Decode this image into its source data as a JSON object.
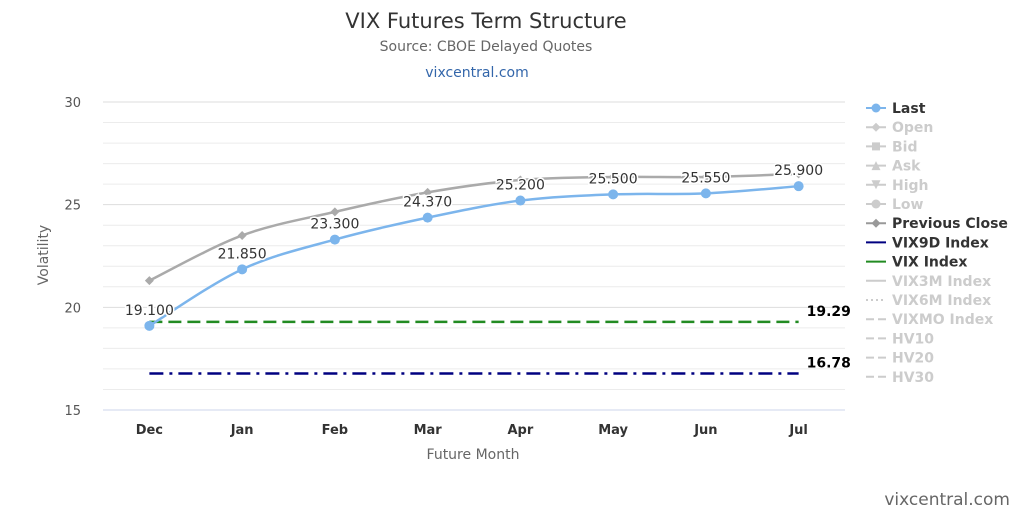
{
  "chart_data": {
    "type": "line",
    "title": "VIX Futures Term Structure",
    "subtitle": "Source: CBOE Delayed Quotes",
    "link": "vixcentral.com",
    "credit": "vixcentral.com",
    "xlabel": "Future Month",
    "ylabel": "Volatility",
    "categories": [
      "Dec",
      "Jan",
      "Feb",
      "Mar",
      "Apr",
      "May",
      "Jun",
      "Jul"
    ],
    "ylim": [
      15,
      30
    ],
    "yticks": [
      15,
      20,
      25,
      30
    ],
    "grid": true,
    "legend_position": "right",
    "series": [
      {
        "name": "Last",
        "values": [
          19.1,
          21.85,
          23.3,
          24.37,
          25.2,
          25.5,
          25.55,
          25.9
        ],
        "labels": [
          "19.100",
          "21.850",
          "23.300",
          "24.370",
          "25.200",
          "25.500",
          "25.550",
          "25.900"
        ],
        "color": "#7cb5ec"
      },
      {
        "name": "Previous Close",
        "values": [
          21.3,
          23.5,
          24.65,
          25.6,
          26.2,
          26.35,
          26.35,
          26.5
        ],
        "color": "#aaaaaa"
      }
    ],
    "reference_lines": [
      {
        "name": "VIX Index",
        "value": 19.29,
        "label": "19.29",
        "color": "#228b22",
        "dash": "dashed"
      },
      {
        "name": "VIX9D Index",
        "value": 16.78,
        "label": "16.78",
        "color": "#000080",
        "dash": "dashdot"
      }
    ],
    "legend": [
      {
        "name": "Last",
        "color": "#7cb5ec",
        "text_color": "#333333",
        "marker": "circle",
        "line": "solid"
      },
      {
        "name": "Open",
        "color": "#cccccc",
        "text_color": "#cccccc",
        "marker": "diamond",
        "line": "solid"
      },
      {
        "name": "Bid",
        "color": "#cccccc",
        "text_color": "#cccccc",
        "marker": "square",
        "line": "solid"
      },
      {
        "name": "Ask",
        "color": "#cccccc",
        "text_color": "#cccccc",
        "marker": "triangle",
        "line": "solid"
      },
      {
        "name": "High",
        "color": "#cccccc",
        "text_color": "#cccccc",
        "marker": "triangle-down",
        "line": "solid"
      },
      {
        "name": "Low",
        "color": "#cccccc",
        "text_color": "#cccccc",
        "marker": "circle",
        "line": "solid"
      },
      {
        "name": "Previous Close",
        "color": "#999999",
        "text_color": "#333333",
        "marker": "diamond",
        "line": "solid"
      },
      {
        "name": "VIX9D Index",
        "color": "#000080",
        "text_color": "#333333",
        "marker": "none",
        "line": "solid"
      },
      {
        "name": "VIX Index",
        "color": "#228b22",
        "text_color": "#333333",
        "marker": "none",
        "line": "solid"
      },
      {
        "name": "VIX3M Index",
        "color": "#cccccc",
        "text_color": "#cccccc",
        "marker": "none",
        "line": "solid"
      },
      {
        "name": "VIX6M Index",
        "color": "#cccccc",
        "text_color": "#cccccc",
        "marker": "none",
        "line": "dotted"
      },
      {
        "name": "VIXMO Index",
        "color": "#cccccc",
        "text_color": "#cccccc",
        "marker": "none",
        "line": "dashed"
      },
      {
        "name": "HV10",
        "color": "#cccccc",
        "text_color": "#cccccc",
        "marker": "none",
        "line": "dashed"
      },
      {
        "name": "HV20",
        "color": "#cccccc",
        "text_color": "#cccccc",
        "marker": "none",
        "line": "dashed"
      },
      {
        "name": "HV30",
        "color": "#cccccc",
        "text_color": "#cccccc",
        "marker": "none",
        "line": "dashed"
      }
    ]
  }
}
